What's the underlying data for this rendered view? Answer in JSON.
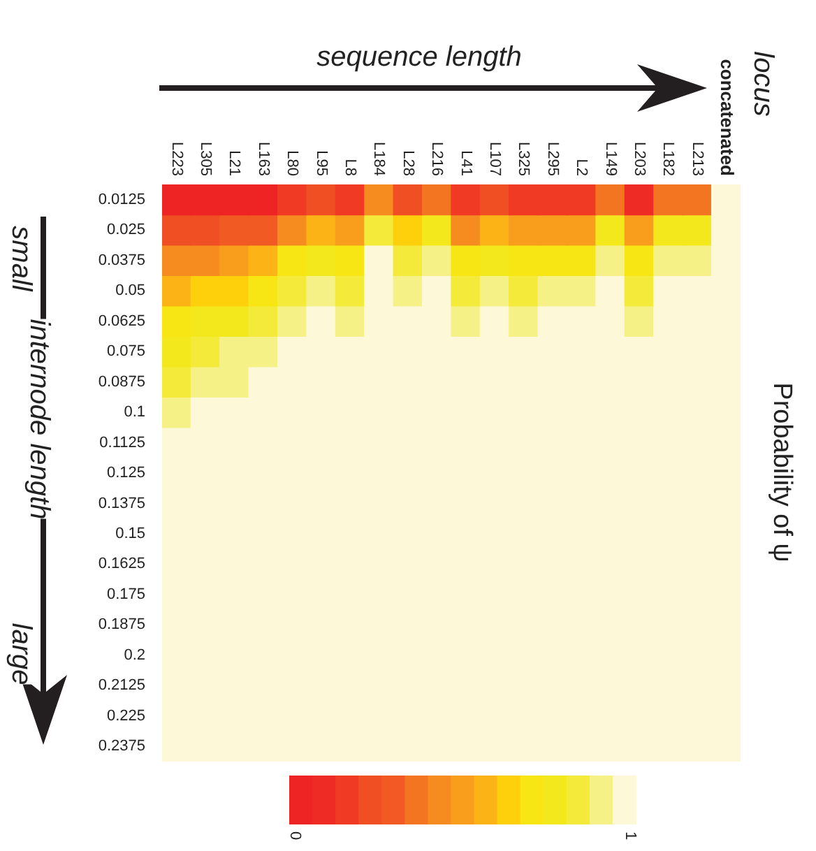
{
  "chart_data": {
    "type": "heatmap",
    "xlabel": "sequence length",
    "ylabel": "internode length",
    "clabel": "Probability of ψ",
    "annotations": [
      "locus",
      "small",
      "large"
    ],
    "categories": [
      "L223",
      "L305",
      "L21",
      "L163",
      "L80",
      "L95",
      "L8",
      "L184",
      "L28",
      "L216",
      "L41",
      "L107",
      "L325",
      "L295",
      "L2",
      "L149",
      "L203",
      "L182",
      "L213",
      "concatenated"
    ],
    "y_categories": [
      "0.0125",
      "0.025",
      "0.0375",
      "0.05",
      "0.0625",
      "0.075",
      "0.0875",
      "0.1",
      "0.1125",
      "0.125",
      "0.1375",
      "0.15",
      "0.1625",
      "0.175",
      "0.1875",
      "0.2",
      "0.2125",
      "0.225",
      "0.2375"
    ],
    "clim": [
      0,
      1
    ],
    "cticks": [
      0,
      1
    ],
    "cells": [
      [
        0,
        0,
        0,
        0,
        0.14,
        0.21,
        0.14,
        0.43,
        0.21,
        0.36,
        0.14,
        0.21,
        0.14,
        0.14,
        0.14,
        0.36,
        0.07,
        0.36,
        0.36,
        1
      ],
      [
        0.21,
        0.21,
        0.29,
        0.29,
        0.43,
        0.57,
        0.5,
        0.86,
        0.64,
        0.79,
        0.43,
        0.57,
        0.5,
        0.5,
        0.5,
        0.79,
        0.5,
        0.79,
        0.79,
        1
      ],
      [
        0.43,
        0.43,
        0.5,
        0.57,
        0.71,
        0.79,
        0.71,
        1,
        0.86,
        0.93,
        0.71,
        0.79,
        0.71,
        0.71,
        0.71,
        0.93,
        0.71,
        0.93,
        0.93,
        1
      ],
      [
        0.57,
        0.64,
        0.64,
        0.71,
        0.86,
        0.93,
        0.86,
        1,
        0.93,
        1,
        0.86,
        0.93,
        0.86,
        0.93,
        0.93,
        1,
        0.86,
        1,
        1,
        1
      ],
      [
        0.71,
        0.79,
        0.79,
        0.86,
        0.93,
        1,
        0.93,
        1,
        1,
        1,
        0.93,
        1,
        0.93,
        1,
        1,
        1,
        0.93,
        1,
        1,
        1
      ],
      [
        0.79,
        0.86,
        0.93,
        0.93,
        1,
        1,
        1,
        1,
        1,
        1,
        1,
        1,
        1,
        1,
        1,
        1,
        1,
        1,
        1,
        1
      ],
      [
        0.86,
        0.93,
        0.93,
        1,
        1,
        1,
        1,
        1,
        1,
        1,
        1,
        1,
        1,
        1,
        1,
        1,
        1,
        1,
        1,
        1
      ],
      [
        0.93,
        1,
        1,
        1,
        1,
        1,
        1,
        1,
        1,
        1,
        1,
        1,
        1,
        1,
        1,
        1,
        1,
        1,
        1,
        1
      ],
      [
        1,
        1,
        1,
        1,
        1,
        1,
        1,
        1,
        1,
        1,
        1,
        1,
        1,
        1,
        1,
        1,
        1,
        1,
        1,
        1
      ],
      [
        1,
        1,
        1,
        1,
        1,
        1,
        1,
        1,
        1,
        1,
        1,
        1,
        1,
        1,
        1,
        1,
        1,
        1,
        1,
        1
      ],
      [
        1,
        1,
        1,
        1,
        1,
        1,
        1,
        1,
        1,
        1,
        1,
        1,
        1,
        1,
        1,
        1,
        1,
        1,
        1,
        1
      ],
      [
        1,
        1,
        1,
        1,
        1,
        1,
        1,
        1,
        1,
        1,
        1,
        1,
        1,
        1,
        1,
        1,
        1,
        1,
        1,
        1
      ],
      [
        1,
        1,
        1,
        1,
        1,
        1,
        1,
        1,
        1,
        1,
        1,
        1,
        1,
        1,
        1,
        1,
        1,
        1,
        1,
        1
      ],
      [
        1,
        1,
        1,
        1,
        1,
        1,
        1,
        1,
        1,
        1,
        1,
        1,
        1,
        1,
        1,
        1,
        1,
        1,
        1,
        1
      ],
      [
        1,
        1,
        1,
        1,
        1,
        1,
        1,
        1,
        1,
        1,
        1,
        1,
        1,
        1,
        1,
        1,
        1,
        1,
        1,
        1
      ],
      [
        1,
        1,
        1,
        1,
        1,
        1,
        1,
        1,
        1,
        1,
        1,
        1,
        1,
        1,
        1,
        1,
        1,
        1,
        1,
        1
      ],
      [
        1,
        1,
        1,
        1,
        1,
        1,
        1,
        1,
        1,
        1,
        1,
        1,
        1,
        1,
        1,
        1,
        1,
        1,
        1,
        1
      ],
      [
        1,
        1,
        1,
        1,
        1,
        1,
        1,
        1,
        1,
        1,
        1,
        1,
        1,
        1,
        1,
        1,
        1,
        1,
        1,
        1
      ],
      [
        1,
        1,
        1,
        1,
        1,
        1,
        1,
        1,
        1,
        1,
        1,
        1,
        1,
        1,
        1,
        1,
        1,
        1,
        1,
        1
      ]
    ]
  }
}
